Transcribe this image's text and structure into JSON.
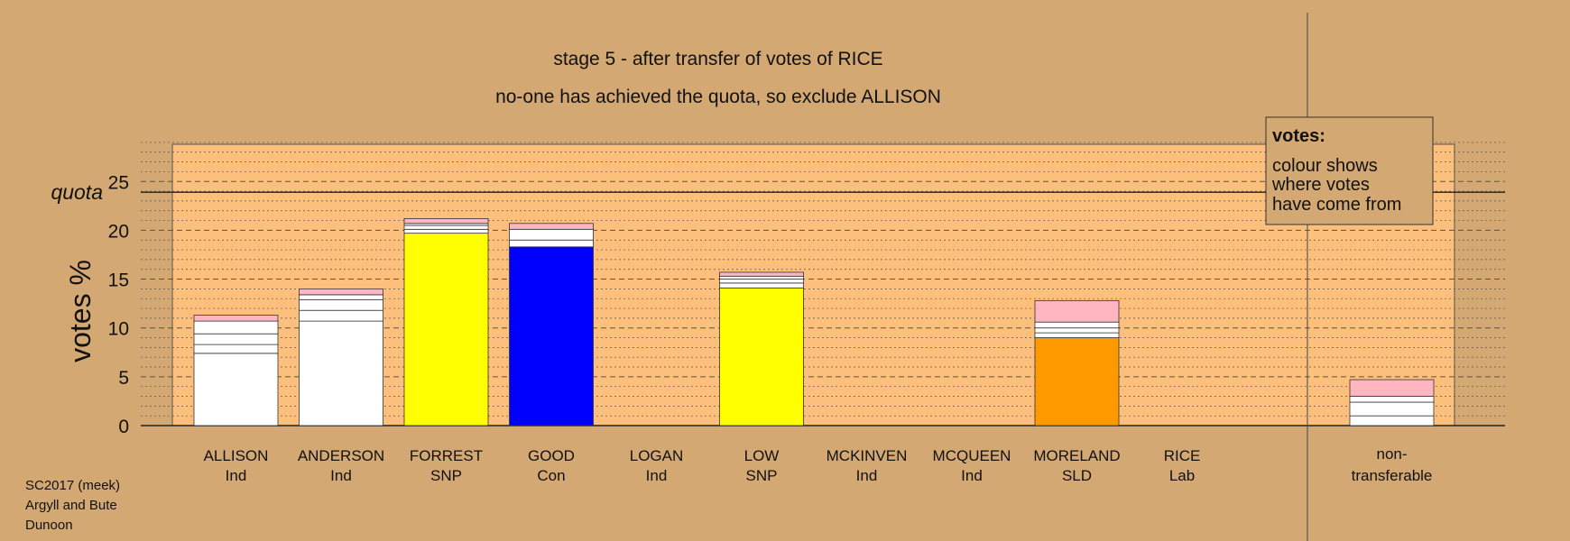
{
  "chart_data": {
    "type": "bar",
    "title": "stage 5 - after transfer of votes of RICE",
    "subtitle": "no-one has achieved the quota, so exclude ALLISON",
    "ylabel": "votes %",
    "ylim": [
      0,
      29
    ],
    "yticks": [
      0,
      5,
      10,
      15,
      20,
      25
    ],
    "quota": {
      "label": "quota",
      "value": 23.9
    },
    "candidates": [
      {
        "name": "ALLISON",
        "party": "Ind",
        "segments": [
          {
            "value": 7.4,
            "color": "#ffffff"
          },
          {
            "value": 0.9,
            "color": "#ffffff"
          },
          {
            "value": 1.1,
            "color": "#ffffff"
          },
          {
            "value": 1.3,
            "color": "#ffffff"
          },
          {
            "value": 0.6,
            "color": "#ffb6c1"
          }
        ]
      },
      {
        "name": "ANDERSON",
        "party": "Ind",
        "segments": [
          {
            "value": 10.7,
            "color": "#ffffff"
          },
          {
            "value": 1.1,
            "color": "#ffffff"
          },
          {
            "value": 1.1,
            "color": "#ffffff"
          },
          {
            "value": 0.5,
            "color": "#ffffff"
          },
          {
            "value": 0.6,
            "color": "#ffb6c1"
          }
        ]
      },
      {
        "name": "FORREST",
        "party": "SNP",
        "segments": [
          {
            "value": 19.7,
            "color": "#ffff00"
          },
          {
            "value": 0.4,
            "color": "#ffffff"
          },
          {
            "value": 0.4,
            "color": "#ffffff"
          },
          {
            "value": 0.2,
            "color": "#ffffff"
          },
          {
            "value": 0.5,
            "color": "#ffb6c1"
          }
        ]
      },
      {
        "name": "GOOD",
        "party": "Con",
        "segments": [
          {
            "value": 18.3,
            "color": "#0000ff"
          },
          {
            "value": 0.7,
            "color": "#ffffff"
          },
          {
            "value": 1.1,
            "color": "#ffffff"
          },
          {
            "value": 0.6,
            "color": "#ffb6c1"
          }
        ]
      },
      {
        "name": "LOGAN",
        "party": "Ind",
        "segments": []
      },
      {
        "name": "LOW",
        "party": "SNP",
        "segments": [
          {
            "value": 14.1,
            "color": "#ffff00"
          },
          {
            "value": 0.5,
            "color": "#ffffff"
          },
          {
            "value": 0.4,
            "color": "#ffffff"
          },
          {
            "value": 0.3,
            "color": "#ffffff"
          },
          {
            "value": 0.4,
            "color": "#ffb6c1"
          }
        ]
      },
      {
        "name": "MCKINVEN",
        "party": "Ind",
        "segments": []
      },
      {
        "name": "MCQUEEN",
        "party": "Ind",
        "segments": []
      },
      {
        "name": "MORELAND",
        "party": "SLD",
        "segments": [
          {
            "value": 9.0,
            "color": "#ff9900"
          },
          {
            "value": 0.5,
            "color": "#ffffff"
          },
          {
            "value": 0.5,
            "color": "#ffffff"
          },
          {
            "value": 0.6,
            "color": "#ffffff"
          },
          {
            "value": 2.2,
            "color": "#ffb6c1"
          }
        ]
      },
      {
        "name": "RICE",
        "party": "Lab",
        "segments": []
      }
    ],
    "nontransferable": {
      "name": "non-",
      "name2": "transferable",
      "segments": [
        {
          "value": 1.0,
          "color": "#ffffff"
        },
        {
          "value": 1.4,
          "color": "#ffffff"
        },
        {
          "value": 0.6,
          "color": "#ffffff"
        },
        {
          "value": 1.7,
          "color": "#ffb6c1"
        }
      ]
    },
    "legend": {
      "title": "votes:",
      "lines": [
        "colour shows",
        "where votes",
        "have come from"
      ]
    },
    "grid": true
  },
  "footnote": [
    "SC2017 (meek)",
    "Argyll and Bute",
    "Dunoon"
  ],
  "colors": {
    "background": "#d4a872",
    "plot_area": "#fdbf7c",
    "gridline": "#555555"
  }
}
